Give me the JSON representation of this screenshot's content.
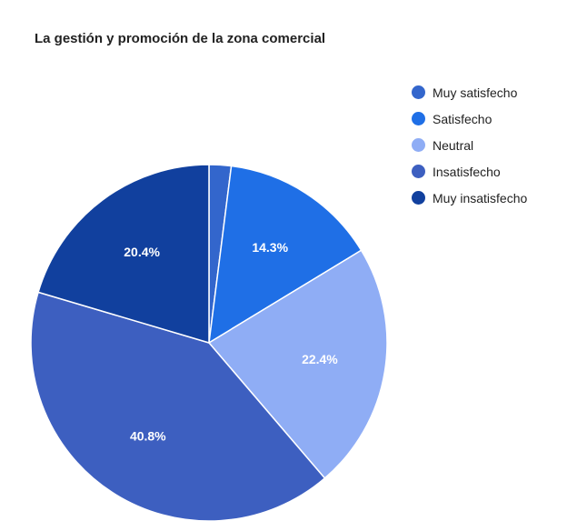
{
  "chart_data": {
    "type": "pie",
    "title": "La gestión y promoción de la zona comercial",
    "legend_position": "right",
    "categories": [
      "Muy satisfecho",
      "Satisfecho",
      "Neutral",
      "Insatisfecho",
      "Muy insatisfecho"
    ],
    "values": [
      2.0,
      14.3,
      22.4,
      40.8,
      20.4
    ],
    "data_labels": [
      "",
      "14.3%",
      "22.4%",
      "40.8%",
      "20.4%"
    ],
    "colors": [
      "#3366cc",
      "#1f6fe6",
      "#8fadf5",
      "#3d5fc0",
      "#11409e"
    ]
  }
}
